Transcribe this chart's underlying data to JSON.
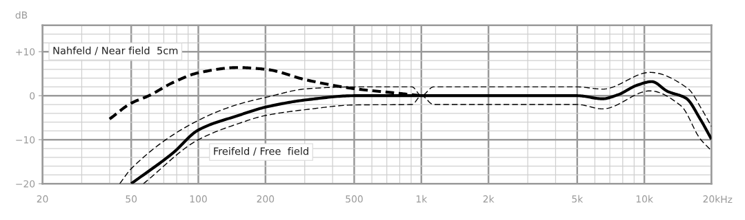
{
  "chart_data": {
    "type": "line",
    "ylabel": "dB",
    "log": "x",
    "grid": true,
    "legend": false,
    "marker": "none",
    "xlim": [
      20,
      20000
    ],
    "ylim": [
      -20,
      16
    ],
    "xticks": [
      20,
      50,
      100,
      200,
      500,
      {
        "value": 1000,
        "label": "1k"
      },
      {
        "value": 2000,
        "label": "2k"
      },
      {
        "value": 5000,
        "label": "5k"
      },
      {
        "value": 10000,
        "label": "10k"
      },
      {
        "value": 20000,
        "label": "20k"
      }
    ],
    "xlabel": "Hz",
    "yticks": [
      {
        "value": -20,
        "label": "−20"
      },
      {
        "value": -10,
        "label": "−10"
      },
      0,
      {
        "value": 10,
        "label": "+10"
      }
    ],
    "series": [
      {
        "name": "Nahfeld / Near field  5cm",
        "color": "#000000",
        "line_style": "dashed",
        "x": [
          40,
          50,
          60,
          77,
          100,
          150,
          200,
          310,
          500,
          772,
          1000
        ],
        "values": [
          -5.3,
          -1.7,
          0,
          3,
          5.2,
          6.4,
          6.0,
          3.5,
          1.6,
          0.6,
          0
        ]
      },
      {
        "name": "Freifeld / Free  field",
        "color": "#000000",
        "line_style": "solid",
        "x": [
          50,
          77,
          100,
          151,
          200,
          310,
          500,
          1000,
          5000,
          6500,
          7600,
          9300,
          10800,
          12700,
          15400,
          17800,
          20000
        ],
        "values": [
          -20,
          -13,
          -7.8,
          -4.5,
          -2.6,
          -0.9,
          0,
          0,
          0,
          -0.7,
          0.2,
          2.4,
          3.2,
          1,
          -0.6,
          -5.3,
          -9.9
        ]
      },
      {
        "color": "#000000",
        "line_style": "dashed",
        "x": [
          44.4,
          50,
          100,
          150,
          200,
          310,
          500,
          908,
          1000,
          1134,
          5000,
          6500,
          10600,
          15700,
          18100,
          20000
        ],
        "values": [
          -20,
          -16.6,
          -5.6,
          -2.0,
          -0.4,
          1.6,
          2.0,
          2.0,
          0,
          2.0,
          2.0,
          1.5,
          5.3,
          1.6,
          -3.1,
          -7
        ]
      },
      {
        "color": "#000000",
        "line_style": "dashed",
        "x": [
          56.7,
          100,
          150,
          200,
          310,
          500,
          908,
          1000,
          1134,
          5000,
          6500,
          10600,
          14600,
          17800,
          20000
        ],
        "values": [
          -20,
          -10,
          -6.4,
          -4.5,
          -3.1,
          -2.1,
          -2.0,
          0,
          -2.0,
          -2.0,
          -3,
          1.1,
          -2.3,
          -9.8,
          -12.5
        ]
      }
    ]
  }
}
